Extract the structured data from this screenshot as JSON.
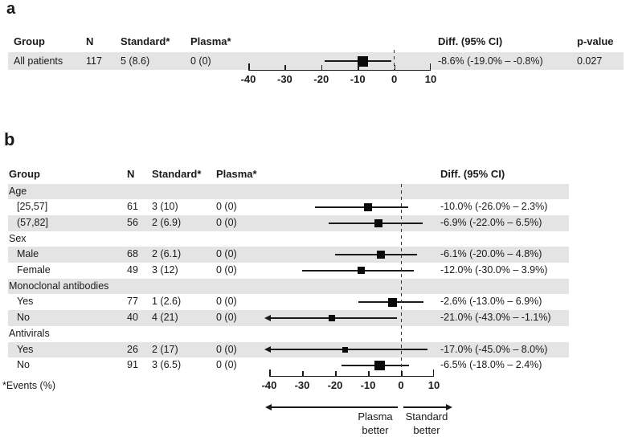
{
  "colors": {
    "band": "#e4e4e4",
    "text": "#1a1a1a",
    "marker": "#0a0a0a"
  },
  "chart_data": [
    {
      "type": "forest",
      "panel_label": "a",
      "columns": [
        "Group",
        "N",
        "Standard*",
        "Plasma*",
        "Diff. (95% CI)",
        "p-value"
      ],
      "rows": [
        {
          "row_type": "data",
          "group": "All patients",
          "n": 117,
          "standard": "5 (8.6)",
          "plasma": "0 (0)",
          "estimate": -8.6,
          "ci_low": -19.0,
          "ci_high": -0.8,
          "diff_label": "-8.6% (-19.0% – -0.8%)",
          "p_value": "0.027"
        }
      ],
      "xlim": [
        -40,
        10
      ],
      "x_ticks": [
        -40,
        -30,
        -20,
        -10,
        0,
        10
      ],
      "x_tick_labels": [
        "-40",
        "-30",
        "-20",
        "-10",
        "0",
        "10"
      ],
      "reference_line": 0
    },
    {
      "type": "forest",
      "panel_label": "b",
      "columns": [
        "Group",
        "N",
        "Standard*",
        "Plasma*",
        "Diff. (95% CI)"
      ],
      "rows": [
        {
          "row_type": "section",
          "group": "Age"
        },
        {
          "row_type": "data",
          "group": "[25,57]",
          "n": 61,
          "standard": "3 (10)",
          "plasma": "0 (0)",
          "estimate": -10.0,
          "ci_low": -26.0,
          "ci_high": 2.3,
          "diff_label": "-10.0% (-26.0% – 2.3%)"
        },
        {
          "row_type": "data",
          "group": "(57,82]",
          "n": 56,
          "standard": "2 (6.9)",
          "plasma": "0 (0)",
          "estimate": -6.9,
          "ci_low": -22.0,
          "ci_high": 6.5,
          "diff_label": "-6.9% (-22.0% – 6.5%)"
        },
        {
          "row_type": "section",
          "group": "Sex"
        },
        {
          "row_type": "data",
          "group": "Male",
          "n": 68,
          "standard": "2 (6.1)",
          "plasma": "0 (0)",
          "estimate": -6.1,
          "ci_low": -20.0,
          "ci_high": 4.8,
          "diff_label": "-6.1% (-20.0% – 4.8%)"
        },
        {
          "row_type": "data",
          "group": "Female",
          "n": 49,
          "standard": "3 (12)",
          "plasma": "0 (0)",
          "estimate": -12.0,
          "ci_low": -30.0,
          "ci_high": 3.9,
          "diff_label": "-12.0% (-30.0% – 3.9%)"
        },
        {
          "row_type": "section",
          "group": "Monoclonal antibodies"
        },
        {
          "row_type": "data",
          "group": "Yes",
          "n": 77,
          "standard": "1 (2.6)",
          "plasma": "0 (0)",
          "estimate": -2.6,
          "ci_low": -13.0,
          "ci_high": 6.9,
          "diff_label": "-2.6% (-13.0% – 6.9%)"
        },
        {
          "row_type": "data",
          "group": "No",
          "n": 40,
          "standard": "4 (21)",
          "plasma": "0 (0)",
          "estimate": -21.0,
          "ci_low": -43.0,
          "ci_high": -1.1,
          "diff_label": "-21.0% (-43.0% – -1.1%)"
        },
        {
          "row_type": "section",
          "group": "Antivirals"
        },
        {
          "row_type": "data",
          "group": "Yes",
          "n": 26,
          "standard": "2 (17)",
          "plasma": "0 (0)",
          "estimate": -17.0,
          "ci_low": -45.0,
          "ci_high": 8.0,
          "diff_label": "-17.0% (-45.0% – 8.0%)"
        },
        {
          "row_type": "data",
          "group": "No",
          "n": 91,
          "standard": "3 (6.5)",
          "plasma": "0 (0)",
          "estimate": -6.5,
          "ci_low": -18.0,
          "ci_high": 2.4,
          "diff_label": "-6.5% (-18.0% – 2.4%)"
        }
      ],
      "xlim": [
        -40,
        10
      ],
      "x_ticks": [
        -40,
        -30,
        -20,
        -10,
        0,
        10
      ],
      "x_tick_labels": [
        "-40",
        "-30",
        "-20",
        "-10",
        "0",
        "10"
      ],
      "reference_line": 0,
      "footnote": "*Events (%)",
      "direction_labels": {
        "left": [
          "Plasma",
          "better"
        ],
        "right": [
          "Standard",
          "better"
        ]
      }
    }
  ]
}
